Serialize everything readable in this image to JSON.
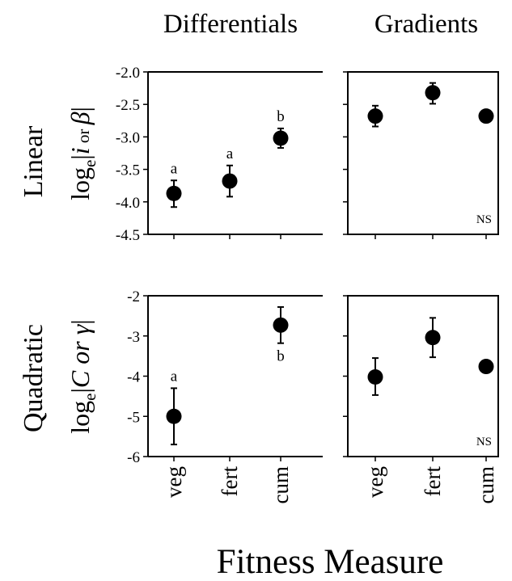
{
  "figure": {
    "column_titles": [
      "Differentials",
      "Gradients"
    ],
    "row_titles": [
      "Linear",
      "Quadratic"
    ],
    "xlabel": "Fitness Measure",
    "linear_ylabel": {
      "prefix": "log",
      "sub": "e",
      "left_bar": "|",
      "var1": "i",
      "middle": " or ",
      "var2": "β",
      "right_bar": "|"
    },
    "quadratic_ylabel": {
      "prefix": "log",
      "sub": "e",
      "left_bar": "|",
      "var1": "C or γ",
      "right_bar": "|"
    }
  },
  "chart_data": [
    {
      "type": "scatter",
      "panel": "linear-differentials",
      "categories": [
        "veg",
        "fert",
        "cum"
      ],
      "values": [
        -3.87,
        -3.68,
        -3.02
      ],
      "errors": [
        [
          -4.08,
          -3.67
        ],
        [
          -3.92,
          -3.44
        ],
        [
          -3.17,
          -2.87
        ]
      ],
      "letters": [
        "a",
        "a",
        "b"
      ],
      "yticks": [
        "-2.0",
        "-2.5",
        "-3.0",
        "-3.5",
        "-4.0",
        "-4.5"
      ],
      "ylim": [
        -4.5,
        -2.0
      ],
      "tick_labels_shown": true,
      "note": ""
    },
    {
      "type": "scatter",
      "panel": "linear-gradients",
      "categories": [
        "veg",
        "fert",
        "cum"
      ],
      "values": [
        -2.68,
        -2.32,
        -2.68
      ],
      "errors": [
        [
          -2.84,
          -2.52
        ],
        [
          -2.49,
          -2.17
        ],
        [
          -2.72,
          -2.64
        ]
      ],
      "letters": [
        "",
        "",
        ""
      ],
      "yticks": [
        "-2.0",
        "-2.5",
        "-3.0",
        "-3.5",
        "-4.0",
        "-4.5"
      ],
      "ylim": [
        -4.5,
        -2.0
      ],
      "tick_labels_shown": false,
      "note": "NS"
    },
    {
      "type": "scatter",
      "panel": "quadratic-differentials",
      "categories": [
        "veg",
        "fert",
        "cum"
      ],
      "values": [
        -5.0,
        null,
        -2.73
      ],
      "errors": [
        [
          -5.7,
          -4.3
        ],
        null,
        [
          -3.18,
          -2.28
        ]
      ],
      "letters": [
        "a",
        "",
        "b"
      ],
      "yticks": [
        "-2",
        "-3",
        "-4",
        "-5",
        "-6"
      ],
      "ylim": [
        -6,
        -2
      ],
      "tick_labels_shown": true,
      "note": ""
    },
    {
      "type": "scatter",
      "panel": "quadratic-gradients",
      "categories": [
        "veg",
        "fert",
        "cum"
      ],
      "values": [
        -4.02,
        -3.04,
        -3.76
      ],
      "errors": [
        [
          -4.47,
          -3.55
        ],
        [
          -3.53,
          -2.55
        ],
        [
          -3.86,
          -3.62
        ]
      ],
      "letters": [
        "",
        "",
        ""
      ],
      "yticks": [
        "-2",
        "-3",
        "-4",
        "-5",
        "-6"
      ],
      "ylim": [
        -6,
        -2
      ],
      "tick_labels_shown": false,
      "note": "NS"
    }
  ]
}
